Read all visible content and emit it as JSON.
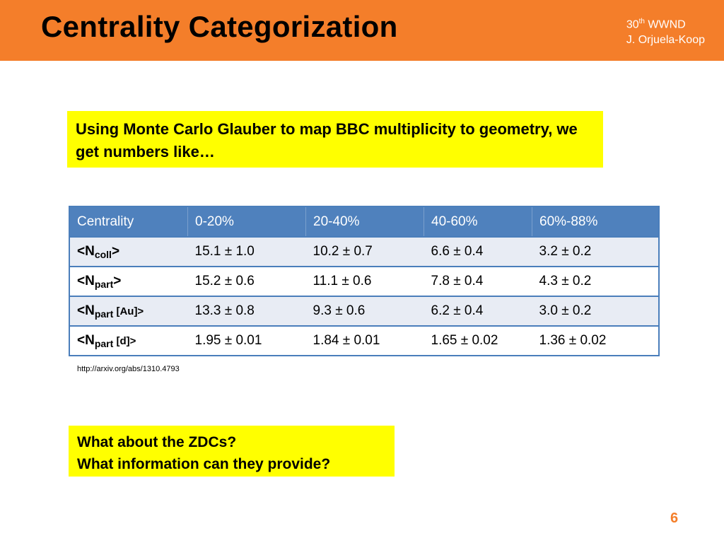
{
  "header": {
    "title": "Centrality Categorization",
    "conference_number": "30",
    "conference_suffix": "th",
    "conference_name": "WWND",
    "author": "J. Orjuela-Koop"
  },
  "intro_box": "Using Monte Carlo Glauber to map BBC multiplicity to geometry, we get numbers like…",
  "table": {
    "headers": [
      "Centrality",
      "0-20%",
      "20-40%",
      "40-60%",
      "60%-88%"
    ],
    "rows": [
      {
        "label_main": "<N",
        "label_sub": "coll",
        "label_tail": ">",
        "cells": [
          "15.1 ± 1.0",
          "10.2 ± 0.7",
          "6.6 ± 0.4",
          "3.2 ± 0.2"
        ]
      },
      {
        "label_main": "<N",
        "label_sub": "part",
        "label_tail": ">",
        "cells": [
          "15.2 ± 0.6",
          "11.1 ± 0.6",
          "7.8 ± 0.4",
          "4.3 ± 0.2"
        ]
      },
      {
        "label_main": "<N",
        "label_sub": "part",
        "label_tail": " [Au]>",
        "cells": [
          "13.3 ± 0.8",
          "9.3 ± 0.6",
          "6.2 ± 0.4",
          "3.0 ± 0.2"
        ]
      },
      {
        "label_main": "<N",
        "label_sub": "part",
        "label_tail": " [d]>",
        "cells": [
          "1.95 ± 0.01",
          "1.84 ± 0.01",
          "1.65 ± 0.02",
          "1.36 ± 0.02"
        ]
      }
    ]
  },
  "reference_url": "http://arxiv.org/abs/1310.4793",
  "question_box": {
    "line1": "What about the ZDCs?",
    "line2": "What information can they provide?"
  },
  "page_number": "6",
  "colors": {
    "header_orange": "#F47E2A",
    "highlight_yellow": "#FFFF00",
    "table_header_blue": "#4F81BD"
  }
}
